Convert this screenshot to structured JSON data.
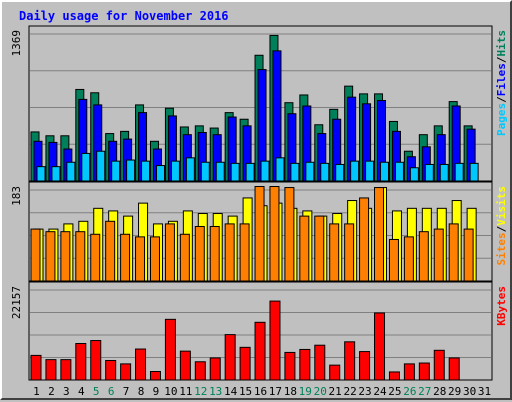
{
  "title": "Daily usage for November 2016",
  "chart_data": [
    {
      "type": "bar",
      "panel": "top",
      "max_label": "1369",
      "ylim": [
        0,
        1369
      ],
      "grid": true,
      "categories": [
        "1",
        "2",
        "3",
        "4",
        "5",
        "6",
        "7",
        "8",
        "9",
        "10",
        "11",
        "12",
        "13",
        "14",
        "15",
        "16",
        "17",
        "18",
        "19",
        "20",
        "21",
        "22",
        "23",
        "24",
        "25",
        "26",
        "27",
        "28",
        "29",
        "30",
        "31"
      ],
      "series": [
        {
          "name": "Hits",
          "color": "#00805a",
          "values": [
            445,
            410,
            410,
            830,
            800,
            430,
            450,
            690,
            360,
            660,
            490,
            500,
            480,
            620,
            560,
            1140,
            1320,
            710,
            780,
            510,
            650,
            860,
            790,
            790,
            540,
            270,
            420,
            500,
            720,
            500,
            0
          ]
        },
        {
          "name": "Files",
          "color": "#0000ff",
          "values": [
            360,
            350,
            290,
            740,
            690,
            360,
            380,
            620,
            290,
            590,
            420,
            440,
            420,
            580,
            500,
            1010,
            1180,
            610,
            680,
            430,
            560,
            760,
            700,
            730,
            450,
            220,
            310,
            420,
            680,
            470,
            0
          ]
        },
        {
          "name": "Pages",
          "color": "#00c8ff",
          "values": [
            130,
            130,
            170,
            250,
            270,
            180,
            190,
            180,
            140,
            180,
            210,
            170,
            170,
            160,
            160,
            180,
            210,
            160,
            170,
            160,
            150,
            180,
            180,
            170,
            170,
            120,
            150,
            150,
            160,
            160,
            0
          ]
        }
      ],
      "axis_labels": [
        "Pages",
        "Files",
        "Hits"
      ]
    },
    {
      "type": "bar",
      "panel": "middle",
      "max_label": "183",
      "ylim": [
        0,
        183
      ],
      "grid": true,
      "categories": [
        "1",
        "2",
        "3",
        "4",
        "5",
        "6",
        "7",
        "8",
        "9",
        "10",
        "11",
        "12",
        "13",
        "14",
        "15",
        "16",
        "17",
        "18",
        "19",
        "20",
        "21",
        "22",
        "23",
        "24",
        "25",
        "26",
        "27",
        "28",
        "29",
        "30",
        "31"
      ],
      "series": [
        {
          "name": "Visits",
          "color": "#ffff00",
          "values": [
            100,
            100,
            110,
            115,
            140,
            135,
            125,
            150,
            110,
            115,
            135,
            130,
            130,
            125,
            160,
            145,
            150,
            140,
            135,
            125,
            130,
            155,
            140,
            180,
            135,
            140,
            140,
            140,
            155,
            140,
            0
          ]
        },
        {
          "name": "Sites",
          "color": "#ff8000",
          "values": [
            100,
            95,
            95,
            95,
            90,
            115,
            90,
            85,
            85,
            110,
            90,
            105,
            105,
            110,
            110,
            182,
            182,
            180,
            125,
            125,
            110,
            110,
            160,
            180,
            80,
            85,
            95,
            100,
            110,
            100,
            0
          ]
        }
      ],
      "axis_labels": [
        "Sites",
        "Visits"
      ]
    },
    {
      "type": "bar",
      "panel": "bottom",
      "max_label": "22157",
      "ylim": [
        0,
        22157
      ],
      "grid": true,
      "categories": [
        "1",
        "2",
        "3",
        "4",
        "5",
        "6",
        "7",
        "8",
        "9",
        "10",
        "11",
        "12",
        "13",
        "14",
        "15",
        "16",
        "17",
        "18",
        "19",
        "20",
        "21",
        "22",
        "23",
        "24",
        "25",
        "26",
        "27",
        "28",
        "29",
        "30",
        "31"
      ],
      "series": [
        {
          "name": "KBytes",
          "color": "#ff0000",
          "values": [
            5800,
            4800,
            4800,
            8600,
            9300,
            4600,
            3800,
            7300,
            2000,
            14300,
            6800,
            4300,
            5200,
            10700,
            7700,
            13600,
            18600,
            6500,
            7200,
            8200,
            3500,
            9000,
            6700,
            15800,
            1900,
            3800,
            4000,
            7000,
            5200,
            0,
            0
          ]
        }
      ],
      "axis_labels": [
        "KBytes"
      ]
    }
  ],
  "x_axis": {
    "labels": [
      "1",
      "2",
      "3",
      "4",
      "5",
      "6",
      "7",
      "8",
      "9",
      "10",
      "11",
      "12",
      "13",
      "14",
      "15",
      "16",
      "17",
      "18",
      "19",
      "20",
      "21",
      "22",
      "23",
      "24",
      "25",
      "26",
      "27",
      "28",
      "29",
      "30",
      "31"
    ],
    "weekend_days": [
      "5",
      "6",
      "12",
      "13",
      "19",
      "20",
      "26",
      "27"
    ],
    "weekday_color": "#000000",
    "weekend_color": "#00805a"
  },
  "colors": {
    "background": "#c0c0c0",
    "plot_background": "#c0c0c0",
    "grid": "#808080",
    "bar_outline": "#000000",
    "title": "#0000ff",
    "label_pages": "#00c8ff",
    "label_files": "#0000ff",
    "label_hits": "#00805a",
    "label_sites": "#ff8000",
    "label_visits": "#ffff00",
    "label_kbytes": "#ff0000",
    "separator": "#000000"
  }
}
